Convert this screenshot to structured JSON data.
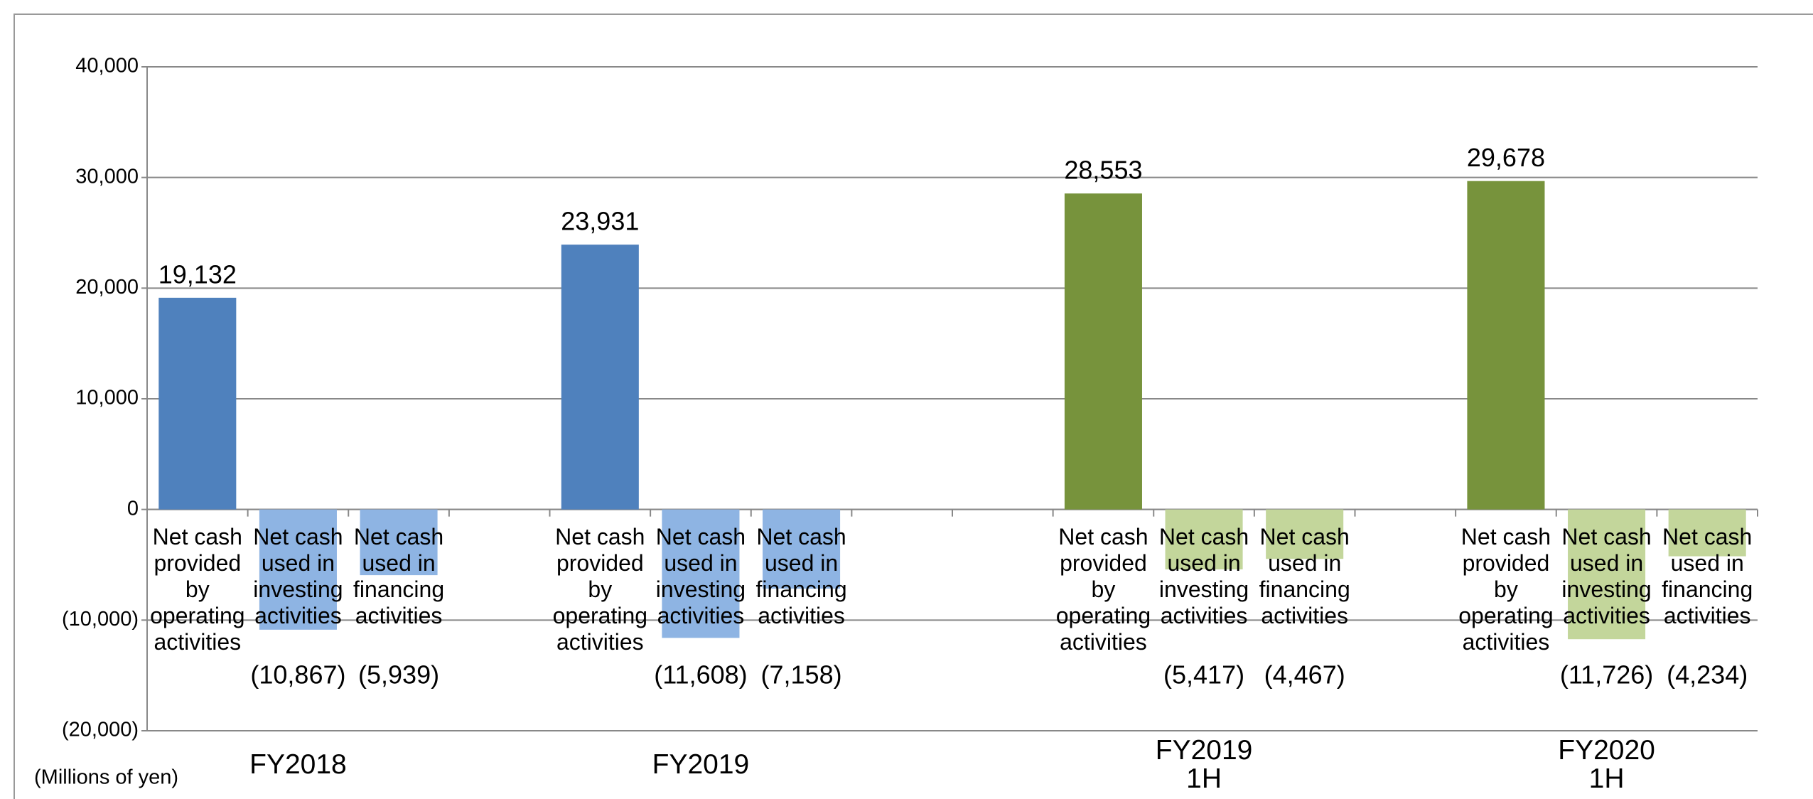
{
  "chart_data": {
    "type": "bar",
    "categories": [
      "Net cash provided by operating activities",
      "Net cash used in investing activities",
      "Net cash used in financing activities",
      null,
      "Net cash provided by operating activities",
      "Net cash used in investing activities",
      "Net cash used in financing activities",
      null,
      null,
      "Net cash provided by operating activities",
      "Net cash used in investing activities",
      "Net cash used in financing activities",
      null,
      "Net cash provided by operating activities",
      "Net cash used in investing activities",
      "Net cash used in financing activities"
    ],
    "values": [
      19132,
      -10867,
      -5939,
      null,
      23931,
      -11608,
      -7158,
      null,
      null,
      28553,
      -5417,
      -4467,
      null,
      29678,
      -11726,
      -4234
    ],
    "value_labels": [
      "19,132",
      "(10,867)",
      "(5,939)",
      null,
      "23,931",
      "(11,608)",
      "(7,158)",
      null,
      null,
      "28,553",
      "(5,417)",
      "(4,467)",
      null,
      "29,678",
      "(11,726)",
      "(4,234)"
    ],
    "colors": [
      "#4f81bd",
      "#8eb4e3",
      "#8eb4e3",
      null,
      "#4f81bd",
      "#8eb4e3",
      "#8eb4e3",
      null,
      null,
      "#77933c",
      "#c3d69b",
      "#c3d69b",
      null,
      "#77933c",
      "#c3d69b",
      "#c3d69b"
    ],
    "groups": [
      {
        "label": "FY2018",
        "categories": [
          0,
          1,
          2
        ]
      },
      {
        "label": "FY2019",
        "categories": [
          4,
          5,
          6
        ]
      },
      {
        "label": "FY2019 1H",
        "categories": [
          9,
          10,
          11
        ]
      },
      {
        "label": "FY2020 1H",
        "categories": [
          13,
          14,
          15
        ]
      }
    ],
    "y_axis_label": "(Millions of yen)",
    "ylim": [
      -20000,
      40000
    ],
    "yticks": [
      {
        "value": -20000,
        "label": "(20,000)"
      },
      {
        "value": -10000,
        "label": "(10,000)"
      },
      0,
      {
        "value": 10000,
        "label": "10,000"
      },
      {
        "value": 20000,
        "label": "20,000"
      },
      {
        "value": 30000,
        "label": "30,000"
      },
      {
        "value": 40000,
        "label": "40,000"
      }
    ],
    "grid": true
  }
}
